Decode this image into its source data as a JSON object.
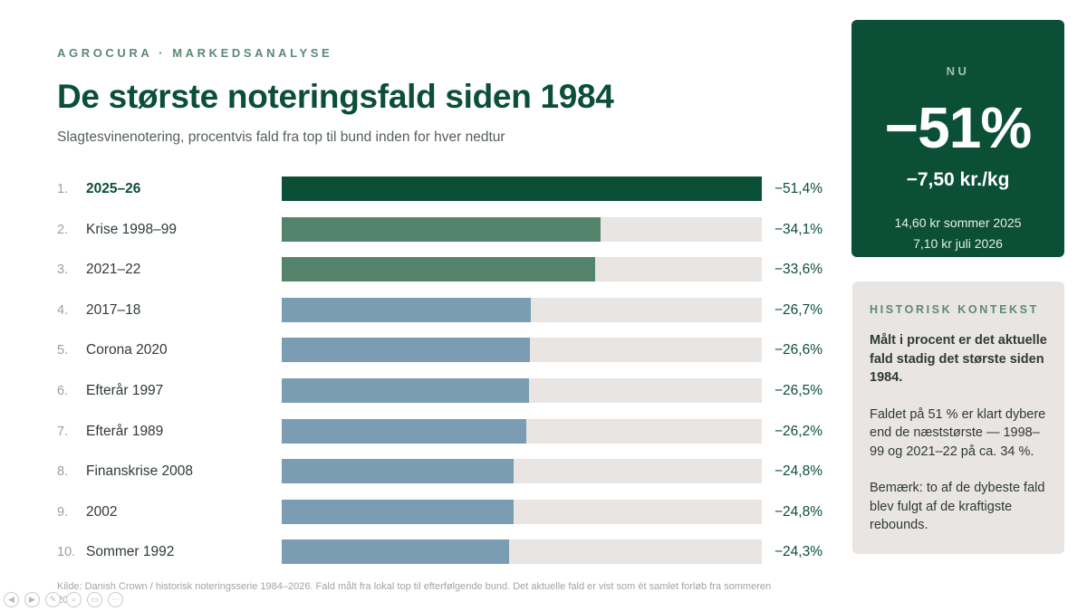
{
  "header": {
    "kicker": "AGROCURA  ·  MARKEDSANALYSE",
    "title": "De største noteringsfald siden 1984",
    "subtitle": "Slagtesvinenotering, procentvis fald fra top til bund inden for hver nedtur"
  },
  "chart_data": {
    "type": "bar",
    "orientation": "horizontal",
    "xlim": [
      0,
      51.4
    ],
    "categories": [
      "2025–26",
      "Krise 1998–99",
      "2021–22",
      "2017–18",
      "Corona 2020",
      "Efterår 1997",
      "Efterår 1989",
      "Finanskrise 2008",
      "2002",
      "Sommer 1992"
    ],
    "ranks": [
      "1.",
      "2.",
      "3.",
      "4.",
      "5.",
      "6.",
      "7.",
      "8.",
      "9.",
      "10."
    ],
    "values": [
      51.4,
      34.1,
      33.6,
      26.7,
      26.6,
      26.5,
      26.2,
      24.8,
      24.8,
      24.3
    ],
    "value_labels": [
      "−51,4%",
      "−34,1%",
      "−33,6%",
      "−26,7%",
      "−26,6%",
      "−26,5%",
      "−26,2%",
      "−24,8%",
      "−24,8%",
      "−24,3%"
    ],
    "bar_colors": [
      "#0b4f36",
      "#53836a",
      "#53836a",
      "#7a9db3",
      "#7a9db3",
      "#7a9db3",
      "#7a9db3",
      "#7a9db3",
      "#7a9db3",
      "#7a9db3"
    ],
    "track_color": "#e8e5e2",
    "highlight_index": 0,
    "grid": false
  },
  "source": "Kilde: Danish Crown / historisk noteringsserie 1984–2026. Fald målt fra lokal top til efterfølgende bund. Det aktuelle fald er vist som ét samlet forløb fra sommeren 2025.",
  "now_card": {
    "label": "NU",
    "value": "−51%",
    "sub": "−7,50 kr./kg",
    "line1": "14,60 kr sommer 2025",
    "line2": "7,10 kr juli 2026",
    "background": "#0b4f36"
  },
  "context_card": {
    "title": "HISTORISK KONTEKST",
    "p1": "Målt i procent er det aktuelle fald stadig det største siden 1984.",
    "p2": "Faldet på 51 % er klart dybere end de næststørste — 1998–99 og 2021–22 på ca. 34 %.",
    "p3": "Bemærk: to af de dybeste fald blev fulgt af de kraftigste rebounds."
  },
  "slide_controls": [
    {
      "icon": "prev-icon",
      "glyph": "◀"
    },
    {
      "icon": "next-icon",
      "glyph": "▶"
    },
    {
      "icon": "pen-icon",
      "glyph": "✎"
    },
    {
      "icon": "zoom-icon",
      "glyph": "⌕"
    },
    {
      "icon": "view-icon",
      "glyph": "▭"
    },
    {
      "icon": "more-icon",
      "glyph": "⋯"
    }
  ]
}
